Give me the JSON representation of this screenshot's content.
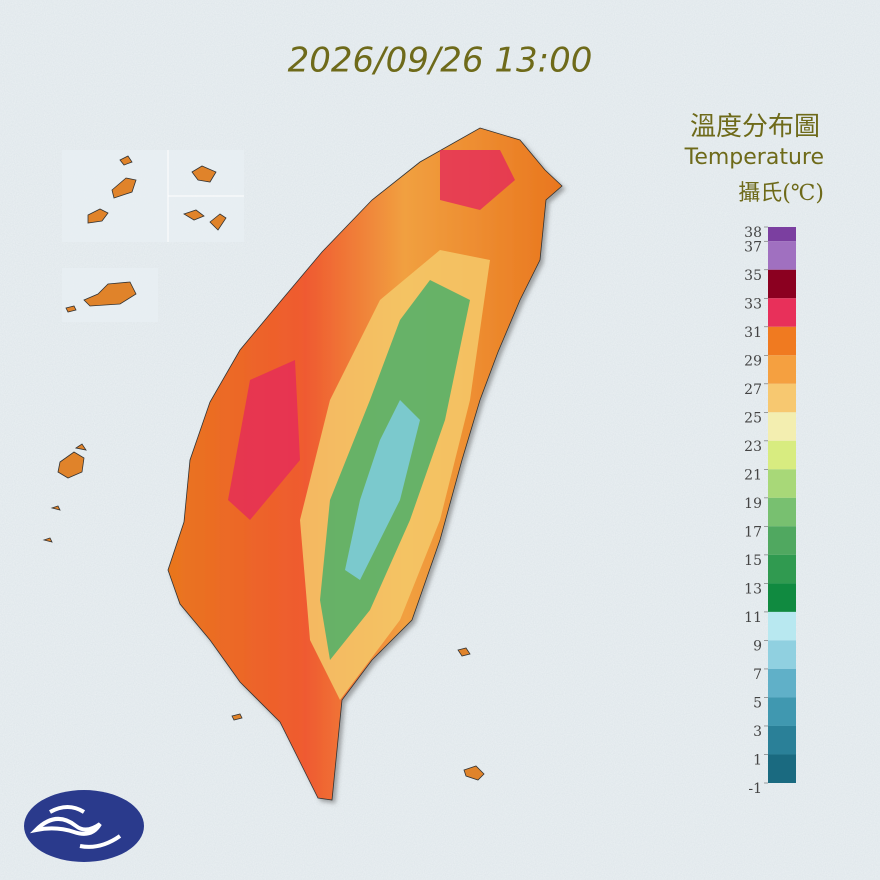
{
  "title": "2026/09/26 13:00",
  "legend": {
    "title": "溫度分布圖",
    "subtitle": "Temperature",
    "unit": "攝氏(℃)",
    "ticks": [
      38,
      37,
      35,
      33,
      31,
      29,
      27,
      25,
      23,
      21,
      19,
      17,
      15,
      13,
      11,
      9,
      7,
      5,
      3,
      1,
      -1
    ],
    "colors": [
      "#7b3fa0",
      "#a070c0",
      "#8b0020",
      "#e8305a",
      "#f07a20",
      "#f5a040",
      "#f7c870",
      "#f3eeb0",
      "#d8ec80",
      "#a8d878",
      "#78c070",
      "#50a860",
      "#309a50",
      "#108a40",
      "#b8e8f0",
      "#90d0e0",
      "#60b0c8",
      "#4098b0",
      "#2a8098",
      "#1a6a80"
    ]
  }
}
